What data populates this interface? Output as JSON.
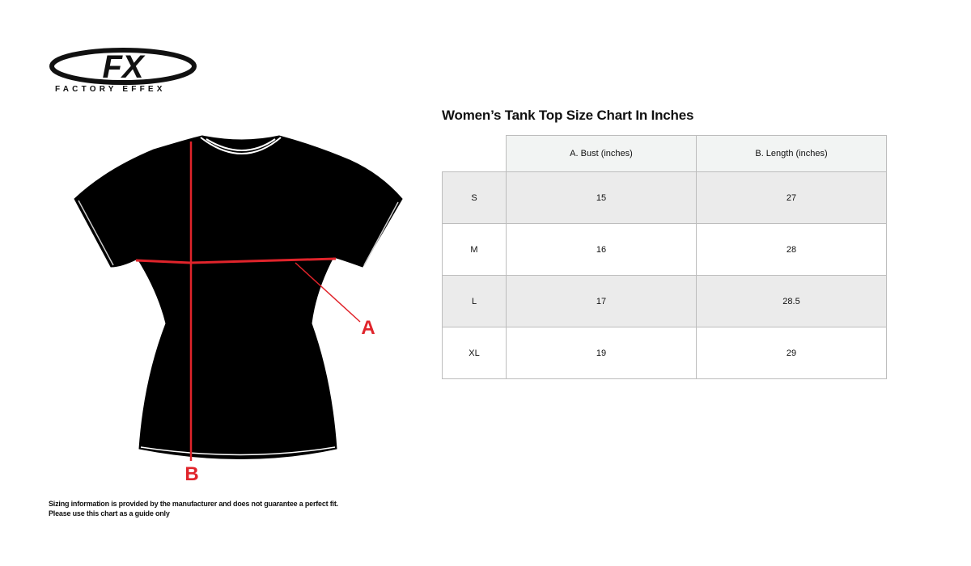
{
  "logo": {
    "mark": "FX",
    "text": "FACTORY EFFEX"
  },
  "diagram": {
    "label_a": "A",
    "label_b": "B",
    "accent": "#e0242b"
  },
  "title": "Women’s Tank Top Size Chart In Inches",
  "table": {
    "headers": [
      "",
      "A. Bust (inches)",
      "B. Length (inches)"
    ],
    "rows": [
      {
        "size": "S",
        "bust": "15",
        "length": "27"
      },
      {
        "size": "M",
        "bust": "16",
        "length": "28"
      },
      {
        "size": "L",
        "bust": "17",
        "length": "28.5"
      },
      {
        "size": "XL",
        "bust": "19",
        "length": "29"
      }
    ]
  },
  "disclaimer": {
    "line1": "Sizing information is provided by the manufacturer and does not guarantee a perfect fit.",
    "line2": "Please use this chart as a guide only"
  }
}
